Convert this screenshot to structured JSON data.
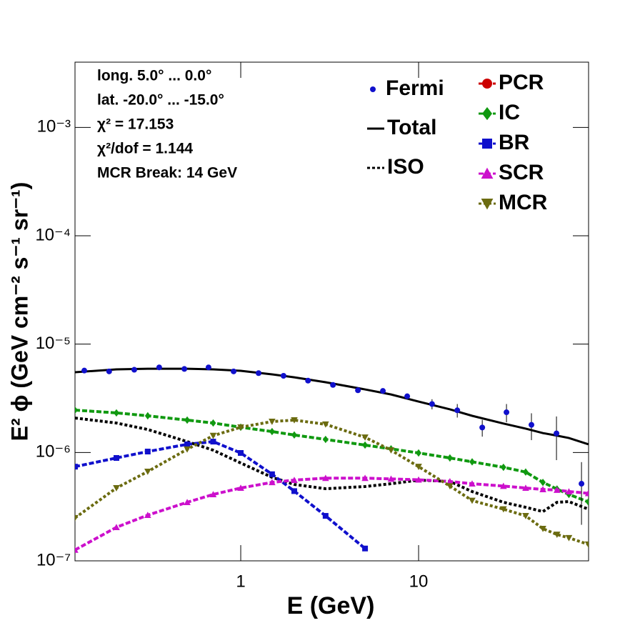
{
  "chart_data": {
    "type": "line",
    "xlabel": "E (GeV)",
    "ylabel": "E² ϕ (GeV cm⁻² s⁻¹ sr⁻¹)",
    "xscale": "log",
    "yscale": "log",
    "xlim": [
      0.117,
      90.3
    ],
    "ylim": [
      1e-07,
      0.004
    ],
    "xticks": [
      1,
      10
    ],
    "yticks": [
      {
        "value": 1e-07,
        "label": "10⁻⁷"
      },
      {
        "value": 1e-06,
        "label": "10⁻⁶"
      },
      {
        "value": 1e-05,
        "label": "10⁻⁵"
      },
      {
        "value": 0.0001,
        "label": "10⁻⁴"
      },
      {
        "value": 0.001,
        "label": "10⁻³"
      }
    ],
    "annotations": [
      "long. 5.0° ... 0.0°",
      "lat. -20.0° ... -15.0°",
      "χ² = 17.153",
      "χ²/dof = 1.144",
      "MCR Break: 14 GeV"
    ],
    "x": [
      0.117,
      0.2,
      0.3,
      0.5,
      0.7,
      1,
      1.5,
      2,
      3,
      5,
      7,
      10,
      15,
      20,
      30,
      40,
      50,
      60,
      70,
      90
    ],
    "data_points": {
      "name": "Fermi",
      "color": "#1010cc",
      "marker": "circle",
      "x": [
        0.132,
        0.182,
        0.252,
        0.348,
        0.482,
        0.659,
        0.912,
        1.26,
        1.74,
        2.39,
        3.3,
        4.56,
        6.3,
        8.63,
        11.9,
        16.5,
        22.8,
        31.2,
        43.1,
        59.6,
        82.4
      ],
      "values": [
        5.7e-06,
        5.6e-06,
        5.8e-06,
        6.1e-06,
        5.9e-06,
        6.1e-06,
        5.6e-06,
        5.4e-06,
        5.1e-06,
        4.6e-06,
        4.2e-06,
        3.75e-06,
        3.7e-06,
        3.3e-06,
        2.8e-06,
        2.45e-06,
        1.7e-06,
        2.35e-06,
        1.8e-06,
        1.5e-06,
        5.15e-07
      ],
      "errors": [
        1e-07,
        1e-07,
        1e-07,
        1e-07,
        1e-07,
        1e-07,
        1e-07,
        1e-07,
        1e-07,
        1e-07,
        1e-07,
        1e-07,
        1.5e-07,
        2e-07,
        3e-07,
        3.5e-07,
        3e-07,
        4.5e-07,
        5e-07,
        6.5e-07,
        3e-07
      ]
    },
    "series": [
      {
        "name": "Total",
        "color": "#000000",
        "line_style": "solid",
        "marker": "none",
        "values": [
          5.5e-06,
          5.85e-06,
          5.93e-06,
          5.93e-06,
          5.85e-06,
          5.67e-06,
          5.26e-06,
          4.94e-06,
          4.45e-06,
          3.82e-06,
          3.43e-06,
          2.95e-06,
          2.5e-06,
          2.18e-06,
          1.85e-06,
          1.66e-06,
          1.51e-06,
          1.43e-06,
          1.36e-06,
          1.19e-06
        ]
      },
      {
        "name": "ISO",
        "color": "#000000",
        "line_style": "dotted",
        "marker": "none",
        "values": [
          2.08e-06,
          1.87e-06,
          1.63e-06,
          1.26e-06,
          1.05e-06,
          8e-07,
          5.9e-07,
          5.07e-07,
          4.63e-07,
          4.85e-07,
          5.15e-07,
          5.56e-07,
          5.4e-07,
          4.36e-07,
          3.47e-07,
          3.12e-07,
          2.85e-07,
          3.47e-07,
          3.52e-07,
          3e-07
        ]
      },
      {
        "name": "PCR",
        "color": "#cc0000",
        "line_style": "dashed",
        "marker": "circle",
        "values": [
          null,
          null,
          null,
          null,
          null,
          null,
          null,
          null,
          null,
          null,
          null,
          null,
          null,
          null,
          null,
          null,
          null,
          null,
          null,
          null
        ]
      },
      {
        "name": "IC",
        "color": "#109910",
        "line_style": "dashed",
        "marker": "diamond",
        "values": [
          2.46e-06,
          2.32e-06,
          2.18e-06,
          1.99e-06,
          1.87e-06,
          1.71e-06,
          1.56e-06,
          1.45e-06,
          1.32e-06,
          1.17e-06,
          1.08e-06,
          9.9e-07,
          8.9e-07,
          8.2e-07,
          7.3e-07,
          6.6e-07,
          5.3e-07,
          4.6e-07,
          4.1e-07,
          3.5e-07
        ]
      },
      {
        "name": "BR",
        "color": "#1010cc",
        "line_style": "dashed",
        "marker": "square",
        "values": [
          7.4e-07,
          8.9e-07,
          1.02e-06,
          1.19e-06,
          1.26e-06,
          9.9e-07,
          6.3e-07,
          4.4e-07,
          2.6e-07,
          1.3e-07,
          null,
          null,
          null,
          null,
          null,
          null,
          null,
          null,
          null,
          null
        ]
      },
      {
        "name": "SCR",
        "color": "#cc10cc",
        "line_style": "dashed",
        "marker": "triangle-up",
        "values": [
          1.26e-07,
          2.04e-07,
          2.64e-07,
          3.47e-07,
          4.1e-07,
          4.7e-07,
          5.3e-07,
          5.56e-07,
          5.8e-07,
          5.8e-07,
          5.7e-07,
          5.6e-07,
          5.4e-07,
          5.15e-07,
          4.9e-07,
          4.7e-07,
          4.56e-07,
          4.5e-07,
          4.36e-07,
          4.2e-07
        ]
      },
      {
        "name": "MCR",
        "color": "#6b6b10",
        "line_style": "dotted",
        "marker": "triangle-down",
        "values": [
          2.49e-07,
          4.7e-07,
          6.67e-07,
          1.07e-06,
          1.43e-06,
          1.71e-06,
          1.93e-06,
          1.99e-06,
          1.82e-06,
          1.38e-06,
          1.05e-06,
          7.4e-07,
          4.9e-07,
          3.6e-07,
          3e-07,
          2.6e-07,
          1.98e-07,
          1.75e-07,
          1.63e-07,
          1.42e-07
        ]
      }
    ]
  }
}
